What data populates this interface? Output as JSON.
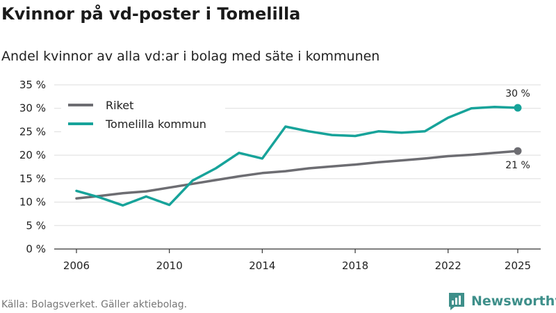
{
  "title": "Kvinnor på vd-poster i Tomelilla",
  "subtitle": "Andel kvinnor av alla vd:ar i bolag med säte i kommunen",
  "source": "Källa: Bolagsverket. Gäller aktiebolag.",
  "brand": {
    "name": "Newsworthy",
    "icon": "newsworthy-logo-icon",
    "color": "#3e8f8a"
  },
  "chart_data": {
    "type": "line",
    "title": "Kvinnor på vd-poster i Tomelilla",
    "xlabel": "",
    "ylabel": "",
    "xlim": [
      2006,
      2025
    ],
    "ylim": [
      0,
      35
    ],
    "x_ticks": [
      "2006",
      "2010",
      "2014",
      "2018",
      "2022",
      "2025"
    ],
    "x_tick_values": [
      2006,
      2010,
      2014,
      2018,
      2022,
      2025
    ],
    "y_ticks": [
      "0 %",
      "5 %",
      "10 %",
      "15 %",
      "20 %",
      "25 %",
      "30 %",
      "35 %"
    ],
    "y_tick_values": [
      0,
      5,
      10,
      15,
      20,
      25,
      30,
      35
    ],
    "grid": true,
    "legend_position": "top-left",
    "x": [
      2006,
      2007,
      2008,
      2009,
      2010,
      2011,
      2012,
      2013,
      2014,
      2015,
      2016,
      2017,
      2018,
      2019,
      2020,
      2021,
      2022,
      2023,
      2024,
      2025
    ],
    "series": [
      {
        "name": "Riket",
        "color": "#6d6d72",
        "values": [
          10.8,
          11.3,
          11.9,
          12.3,
          13.1,
          13.9,
          14.7,
          15.5,
          16.2,
          16.6,
          17.2,
          17.6,
          18.0,
          18.5,
          18.9,
          19.3,
          19.8,
          20.1,
          20.5,
          20.9
        ],
        "end_label": "21 %",
        "end_label_position": "below"
      },
      {
        "name": "Tomelilla kommun",
        "color": "#17a39a",
        "values": [
          12.4,
          11.0,
          9.3,
          11.2,
          9.4,
          14.6,
          17.2,
          20.5,
          19.3,
          26.1,
          25.1,
          24.3,
          24.1,
          25.1,
          24.8,
          25.1,
          28.0,
          30.0,
          30.3,
          30.1
        ],
        "end_label": "30 %",
        "end_label_position": "above"
      }
    ]
  }
}
